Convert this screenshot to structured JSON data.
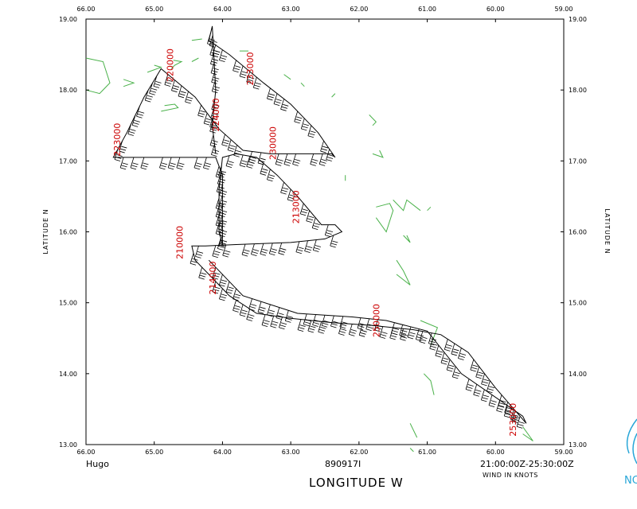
{
  "storm_name": "Hugo",
  "flight_id": "890917I",
  "time_range": "21:00:00Z-25:30:00Z",
  "wind_units": "WIND IN KNOTS",
  "x_axis_title": "LONGITUDE  W",
  "y_axis_title": "LATITUDE  N",
  "logo_text": "NC",
  "colors": {
    "coast": "#49b149",
    "time_label": "#cc0000",
    "track": "#000000",
    "logo": "#28a6d8"
  },
  "lon_ticks": [
    "66.00",
    "65.00",
    "64.00",
    "63.00",
    "62.00",
    "61.00",
    "60.00",
    "59.00"
  ],
  "lat_ticks": [
    "19.00",
    "18.00",
    "17.00",
    "16.00",
    "15.00",
    "14.00",
    "13.00"
  ],
  "time_labels": [
    {
      "text": "220000",
      "lon": 64.72,
      "lat": 18.35
    },
    {
      "text": "223000",
      "lon": 65.5,
      "lat": 17.3
    },
    {
      "text": "224000",
      "lon": 64.05,
      "lat": 17.65
    },
    {
      "text": "233000",
      "lon": 63.55,
      "lat": 18.3
    },
    {
      "text": "230000",
      "lon": 63.22,
      "lat": 17.25
    },
    {
      "text": "213000",
      "lon": 62.88,
      "lat": 16.35
    },
    {
      "text": "210000",
      "lon": 64.58,
      "lat": 15.85
    },
    {
      "text": "214000",
      "lon": 64.1,
      "lat": 15.35
    },
    {
      "text": "250000",
      "lon": 61.7,
      "lat": 14.75
    },
    {
      "text": "253000",
      "lon": 59.7,
      "lat": 13.35
    }
  ],
  "track": [
    [
      64.2,
      15.6
    ],
    [
      63.7,
      15.1
    ],
    [
      62.9,
      14.85
    ],
    [
      62.1,
      14.8
    ],
    [
      61.6,
      14.75
    ],
    [
      61.0,
      14.6
    ],
    [
      60.5,
      14.0
    ],
    [
      59.6,
      13.4
    ],
    [
      59.55,
      13.3
    ],
    [
      60.0,
      13.8
    ],
    [
      60.4,
      14.3
    ],
    [
      60.8,
      14.55
    ],
    [
      61.2,
      14.62
    ],
    [
      61.8,
      14.68
    ],
    [
      62.4,
      14.72
    ],
    [
      63.0,
      14.78
    ],
    [
      63.5,
      14.85
    ],
    [
      63.9,
      15.1
    ],
    [
      64.2,
      15.4
    ],
    [
      64.4,
      15.6
    ],
    [
      64.45,
      15.8
    ],
    [
      64.25,
      15.8
    ],
    [
      63.8,
      15.82
    ],
    [
      63.0,
      15.85
    ],
    [
      62.5,
      15.9
    ],
    [
      62.25,
      16.0
    ],
    [
      62.35,
      16.1
    ],
    [
      62.55,
      16.1
    ],
    [
      62.9,
      16.5
    ],
    [
      63.2,
      16.8
    ],
    [
      63.5,
      17.05
    ],
    [
      63.8,
      17.1
    ],
    [
      64.0,
      17.05
    ],
    [
      64.05,
      16.6
    ],
    [
      64.05,
      16.0
    ],
    [
      64.0,
      15.82
    ],
    [
      64.0,
      16.8
    ],
    [
      64.1,
      17.05
    ],
    [
      64.5,
      17.05
    ],
    [
      65.0,
      17.05
    ],
    [
      65.6,
      17.05
    ],
    [
      65.4,
      17.4
    ],
    [
      65.15,
      17.9
    ],
    [
      64.9,
      18.3
    ],
    [
      64.4,
      17.9
    ],
    [
      64.05,
      17.45
    ],
    [
      63.7,
      17.15
    ],
    [
      63.3,
      17.1
    ],
    [
      62.8,
      17.1
    ],
    [
      62.4,
      17.1
    ],
    [
      62.35,
      17.05
    ],
    [
      62.6,
      17.4
    ],
    [
      63.0,
      17.8
    ],
    [
      63.4,
      18.1
    ],
    [
      63.9,
      18.5
    ],
    [
      64.2,
      18.7
    ],
    [
      64.15,
      18.9
    ],
    [
      64.1,
      18.0
    ],
    [
      64.15,
      17.5
    ],
    [
      64.1,
      17.1
    ]
  ],
  "coastlines": [
    [
      [
        66.0,
        18.45
      ],
      [
        65.75,
        18.4
      ],
      [
        65.65,
        18.1
      ],
      [
        65.8,
        17.95
      ],
      [
        66.0,
        18.0
      ]
    ],
    [
      [
        65.45,
        18.15
      ],
      [
        65.3,
        18.1
      ],
      [
        65.45,
        18.05
      ]
    ],
    [
      [
        65.1,
        18.25
      ],
      [
        64.9,
        18.32
      ],
      [
        65.0,
        18.35
      ]
    ],
    [
      [
        64.75,
        18.3
      ],
      [
        64.7,
        18.35
      ],
      [
        64.6,
        18.4
      ],
      [
        64.72,
        18.42
      ]
    ],
    [
      [
        64.9,
        17.7
      ],
      [
        64.65,
        17.75
      ],
      [
        64.7,
        17.8
      ],
      [
        64.85,
        17.78
      ]
    ],
    [
      [
        64.45,
        18.4
      ],
      [
        64.35,
        18.45
      ]
    ],
    [
      [
        64.45,
        18.7
      ],
      [
        64.3,
        18.72
      ]
    ],
    [
      [
        63.75,
        18.55
      ],
      [
        63.62,
        18.55
      ]
    ],
    [
      [
        63.1,
        18.22
      ],
      [
        63.0,
        18.15
      ]
    ],
    [
      [
        62.85,
        18.1
      ],
      [
        62.8,
        18.05
      ]
    ],
    [
      [
        62.4,
        17.9
      ],
      [
        62.35,
        17.95
      ]
    ],
    [
      [
        61.85,
        17.65
      ],
      [
        61.75,
        17.55
      ],
      [
        61.8,
        17.5
      ]
    ],
    [
      [
        61.8,
        17.1
      ],
      [
        61.65,
        17.05
      ],
      [
        61.7,
        17.15
      ]
    ],
    [
      [
        62.2,
        16.8
      ],
      [
        62.2,
        16.72
      ]
    ],
    [
      [
        61.75,
        16.35
      ],
      [
        61.55,
        16.4
      ],
      [
        61.5,
        16.3
      ],
      [
        61.6,
        16.0
      ],
      [
        61.75,
        16.2
      ]
    ],
    [
      [
        61.5,
        16.45
      ],
      [
        61.35,
        16.3
      ],
      [
        61.3,
        16.45
      ],
      [
        61.1,
        16.3
      ]
    ],
    [
      [
        61.0,
        16.3
      ],
      [
        60.95,
        16.35
      ]
    ],
    [
      [
        61.35,
        15.95
      ],
      [
        61.25,
        15.85
      ],
      [
        61.3,
        15.95
      ]
    ],
    [
      [
        61.45,
        15.6
      ],
      [
        61.35,
        15.45
      ],
      [
        61.25,
        15.25
      ],
      [
        61.45,
        15.4
      ]
    ],
    [
      [
        61.1,
        14.75
      ],
      [
        60.85,
        14.65
      ],
      [
        60.95,
        14.4
      ]
    ],
    [
      [
        61.05,
        14.0
      ],
      [
        60.95,
        13.9
      ],
      [
        60.9,
        13.7
      ]
    ],
    [
      [
        61.25,
        13.3
      ],
      [
        61.15,
        13.1
      ]
    ],
    [
      [
        61.25,
        12.95
      ],
      [
        61.2,
        12.9
      ]
    ],
    [
      [
        59.6,
        13.25
      ],
      [
        59.45,
        13.05
      ],
      [
        59.6,
        13.15
      ]
    ]
  ]
}
